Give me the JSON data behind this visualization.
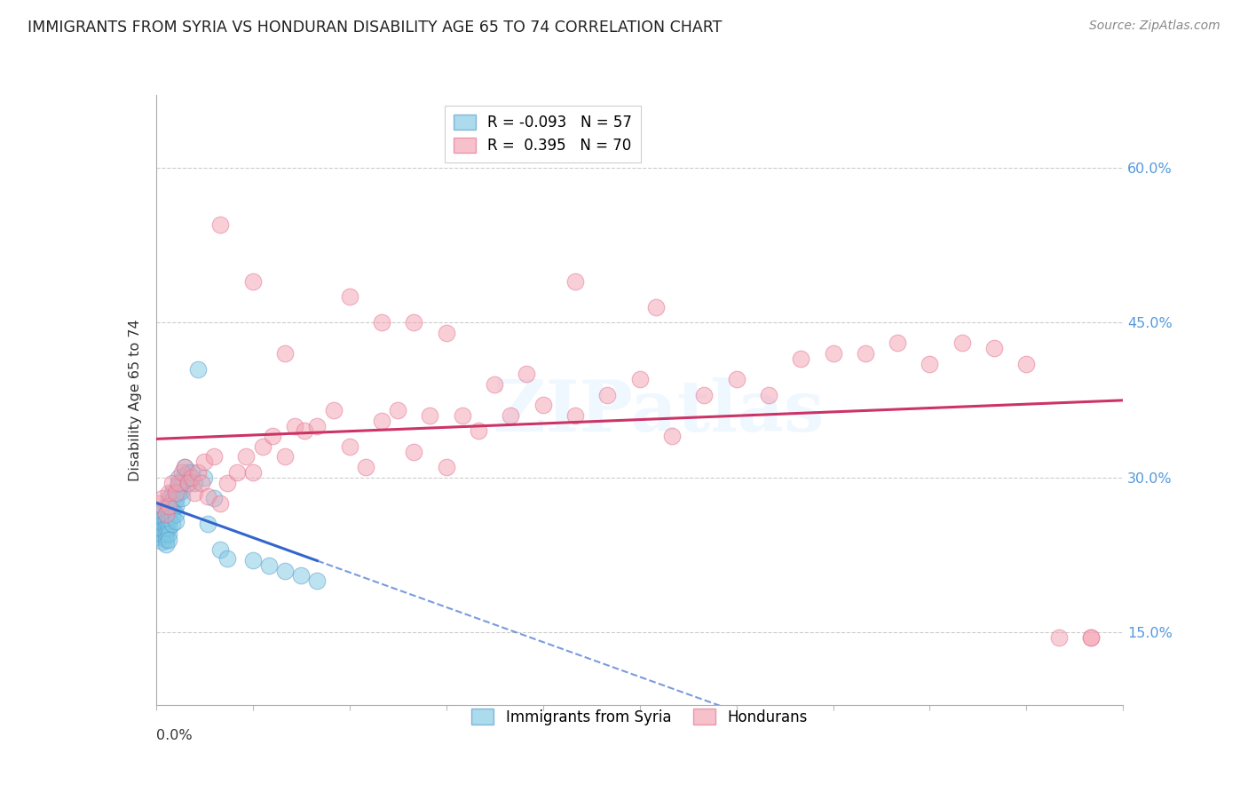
{
  "title": "IMMIGRANTS FROM SYRIA VS HONDURAN DISABILITY AGE 65 TO 74 CORRELATION CHART",
  "source": "Source: ZipAtlas.com",
  "ylabel": "Disability Age 65 to 74",
  "y_ticks": [
    0.15,
    0.3,
    0.45,
    0.6
  ],
  "y_tick_labels": [
    "15.0%",
    "30.0%",
    "45.0%",
    "60.0%"
  ],
  "x_ticks": [
    0.0,
    0.03,
    0.06,
    0.09,
    0.12,
    0.15,
    0.18,
    0.21,
    0.24,
    0.27,
    0.3
  ],
  "xlim": [
    0.0,
    0.3
  ],
  "ylim": [
    0.08,
    0.67
  ],
  "series1_color": "#7ec8e3",
  "series1_edge": "#5599cc",
  "series2_color": "#f4a0b0",
  "series2_edge": "#e07090",
  "trend1_color": "#3366cc",
  "trend2_color": "#cc3366",
  "watermark": "ZIPatlas",
  "blue_points_x": [
    0.001,
    0.001,
    0.001,
    0.001,
    0.002,
    0.002,
    0.002,
    0.002,
    0.002,
    0.002,
    0.003,
    0.003,
    0.003,
    0.003,
    0.003,
    0.003,
    0.003,
    0.004,
    0.004,
    0.004,
    0.004,
    0.004,
    0.004,
    0.004,
    0.005,
    0.005,
    0.005,
    0.005,
    0.005,
    0.006,
    0.006,
    0.006,
    0.006,
    0.006,
    0.007,
    0.007,
    0.007,
    0.008,
    0.008,
    0.008,
    0.009,
    0.009,
    0.01,
    0.01,
    0.011,
    0.012,
    0.013,
    0.015,
    0.016,
    0.018,
    0.02,
    0.022,
    0.03,
    0.035,
    0.04,
    0.045,
    0.05
  ],
  "blue_points_y": [
    0.265,
    0.258,
    0.25,
    0.242,
    0.268,
    0.26,
    0.255,
    0.25,
    0.245,
    0.238,
    0.272,
    0.265,
    0.258,
    0.252,
    0.246,
    0.24,
    0.235,
    0.28,
    0.272,
    0.265,
    0.258,
    0.252,
    0.246,
    0.24,
    0.285,
    0.278,
    0.27,
    0.263,
    0.255,
    0.285,
    0.278,
    0.272,
    0.265,
    0.258,
    0.3,
    0.292,
    0.285,
    0.295,
    0.287,
    0.28,
    0.31,
    0.302,
    0.305,
    0.295,
    0.305,
    0.295,
    0.405,
    0.3,
    0.255,
    0.28,
    0.23,
    0.222,
    0.22,
    0.215,
    0.21,
    0.205,
    0.2
  ],
  "pink_points_x": [
    0.001,
    0.002,
    0.003,
    0.004,
    0.004,
    0.005,
    0.006,
    0.007,
    0.008,
    0.009,
    0.01,
    0.011,
    0.012,
    0.013,
    0.014,
    0.015,
    0.016,
    0.018,
    0.02,
    0.022,
    0.025,
    0.028,
    0.03,
    0.033,
    0.036,
    0.04,
    0.043,
    0.046,
    0.05,
    0.055,
    0.06,
    0.065,
    0.07,
    0.075,
    0.08,
    0.085,
    0.09,
    0.095,
    0.1,
    0.105,
    0.11,
    0.115,
    0.12,
    0.13,
    0.14,
    0.15,
    0.16,
    0.17,
    0.18,
    0.19,
    0.2,
    0.21,
    0.22,
    0.23,
    0.24,
    0.25,
    0.26,
    0.27,
    0.28,
    0.29,
    0.02,
    0.03,
    0.04,
    0.06,
    0.07,
    0.08,
    0.09,
    0.13,
    0.155,
    0.29
  ],
  "pink_points_y": [
    0.275,
    0.28,
    0.265,
    0.272,
    0.285,
    0.295,
    0.285,
    0.295,
    0.305,
    0.31,
    0.295,
    0.3,
    0.285,
    0.305,
    0.295,
    0.315,
    0.282,
    0.32,
    0.275,
    0.295,
    0.305,
    0.32,
    0.305,
    0.33,
    0.34,
    0.32,
    0.35,
    0.345,
    0.35,
    0.365,
    0.33,
    0.31,
    0.355,
    0.365,
    0.325,
    0.36,
    0.31,
    0.36,
    0.345,
    0.39,
    0.36,
    0.4,
    0.37,
    0.36,
    0.38,
    0.395,
    0.34,
    0.38,
    0.395,
    0.38,
    0.415,
    0.42,
    0.42,
    0.43,
    0.41,
    0.43,
    0.425,
    0.41,
    0.145,
    0.145,
    0.545,
    0.49,
    0.42,
    0.475,
    0.45,
    0.45,
    0.44,
    0.49,
    0.465,
    0.145
  ],
  "legend_blue_label": "R = -0.093   N = 57",
  "legend_pink_label": "R =  0.395   N = 70",
  "legend_blue_series": "Immigrants from Syria",
  "legend_pink_series": "Hondurans"
}
